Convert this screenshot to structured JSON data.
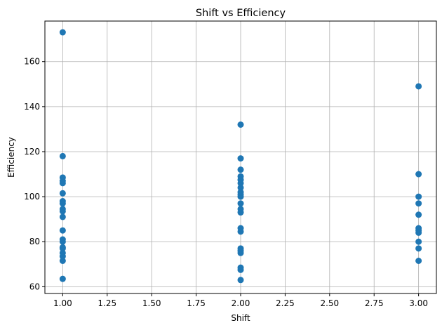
{
  "chart_data": {
    "type": "scatter",
    "title": "Shift vs Efficiency",
    "xlabel": "Shift",
    "ylabel": "Efficiency",
    "xlim": [
      0.9,
      3.1
    ],
    "ylim": [
      57,
      178
    ],
    "x_ticks": [
      1.0,
      1.25,
      1.5,
      1.75,
      2.0,
      2.25,
      2.5,
      2.75,
      3.0
    ],
    "x_tick_labels": [
      "1.00",
      "1.25",
      "1.50",
      "1.75",
      "2.00",
      "2.25",
      "2.50",
      "2.75",
      "3.00"
    ],
    "y_ticks": [
      60,
      80,
      100,
      120,
      140,
      160
    ],
    "y_tick_labels": [
      "60",
      "80",
      "100",
      "120",
      "140",
      "160"
    ],
    "grid": true,
    "marker_color": "#1f77b4",
    "series": [
      {
        "x": [
          1,
          1,
          1,
          1,
          1,
          1,
          1,
          1,
          1,
          1,
          1,
          1,
          1,
          1,
          1,
          1,
          1,
          1,
          1,
          1,
          2,
          2,
          2,
          2,
          2,
          2,
          2,
          2,
          2,
          2,
          2,
          2,
          2,
          2,
          2,
          2,
          2,
          2,
          2,
          2,
          2,
          3,
          3,
          3,
          3,
          3,
          3,
          3,
          3,
          3,
          3,
          3
        ],
        "y": [
          173,
          118,
          108.5,
          107,
          106,
          101.5,
          98,
          97,
          94.5,
          93.5,
          91,
          85,
          81,
          80,
          77,
          75,
          73.5,
          71.5,
          63.5,
          77.5,
          132,
          117,
          112,
          109,
          107.5,
          104,
          102,
          100,
          97,
          94.5,
          93,
          86,
          84.5,
          77,
          75,
          68.5,
          67.5,
          63,
          106,
          101,
          76,
          149,
          110,
          100,
          97,
          92,
          86,
          85,
          84,
          80,
          77,
          71.5
        ]
      }
    ]
  }
}
